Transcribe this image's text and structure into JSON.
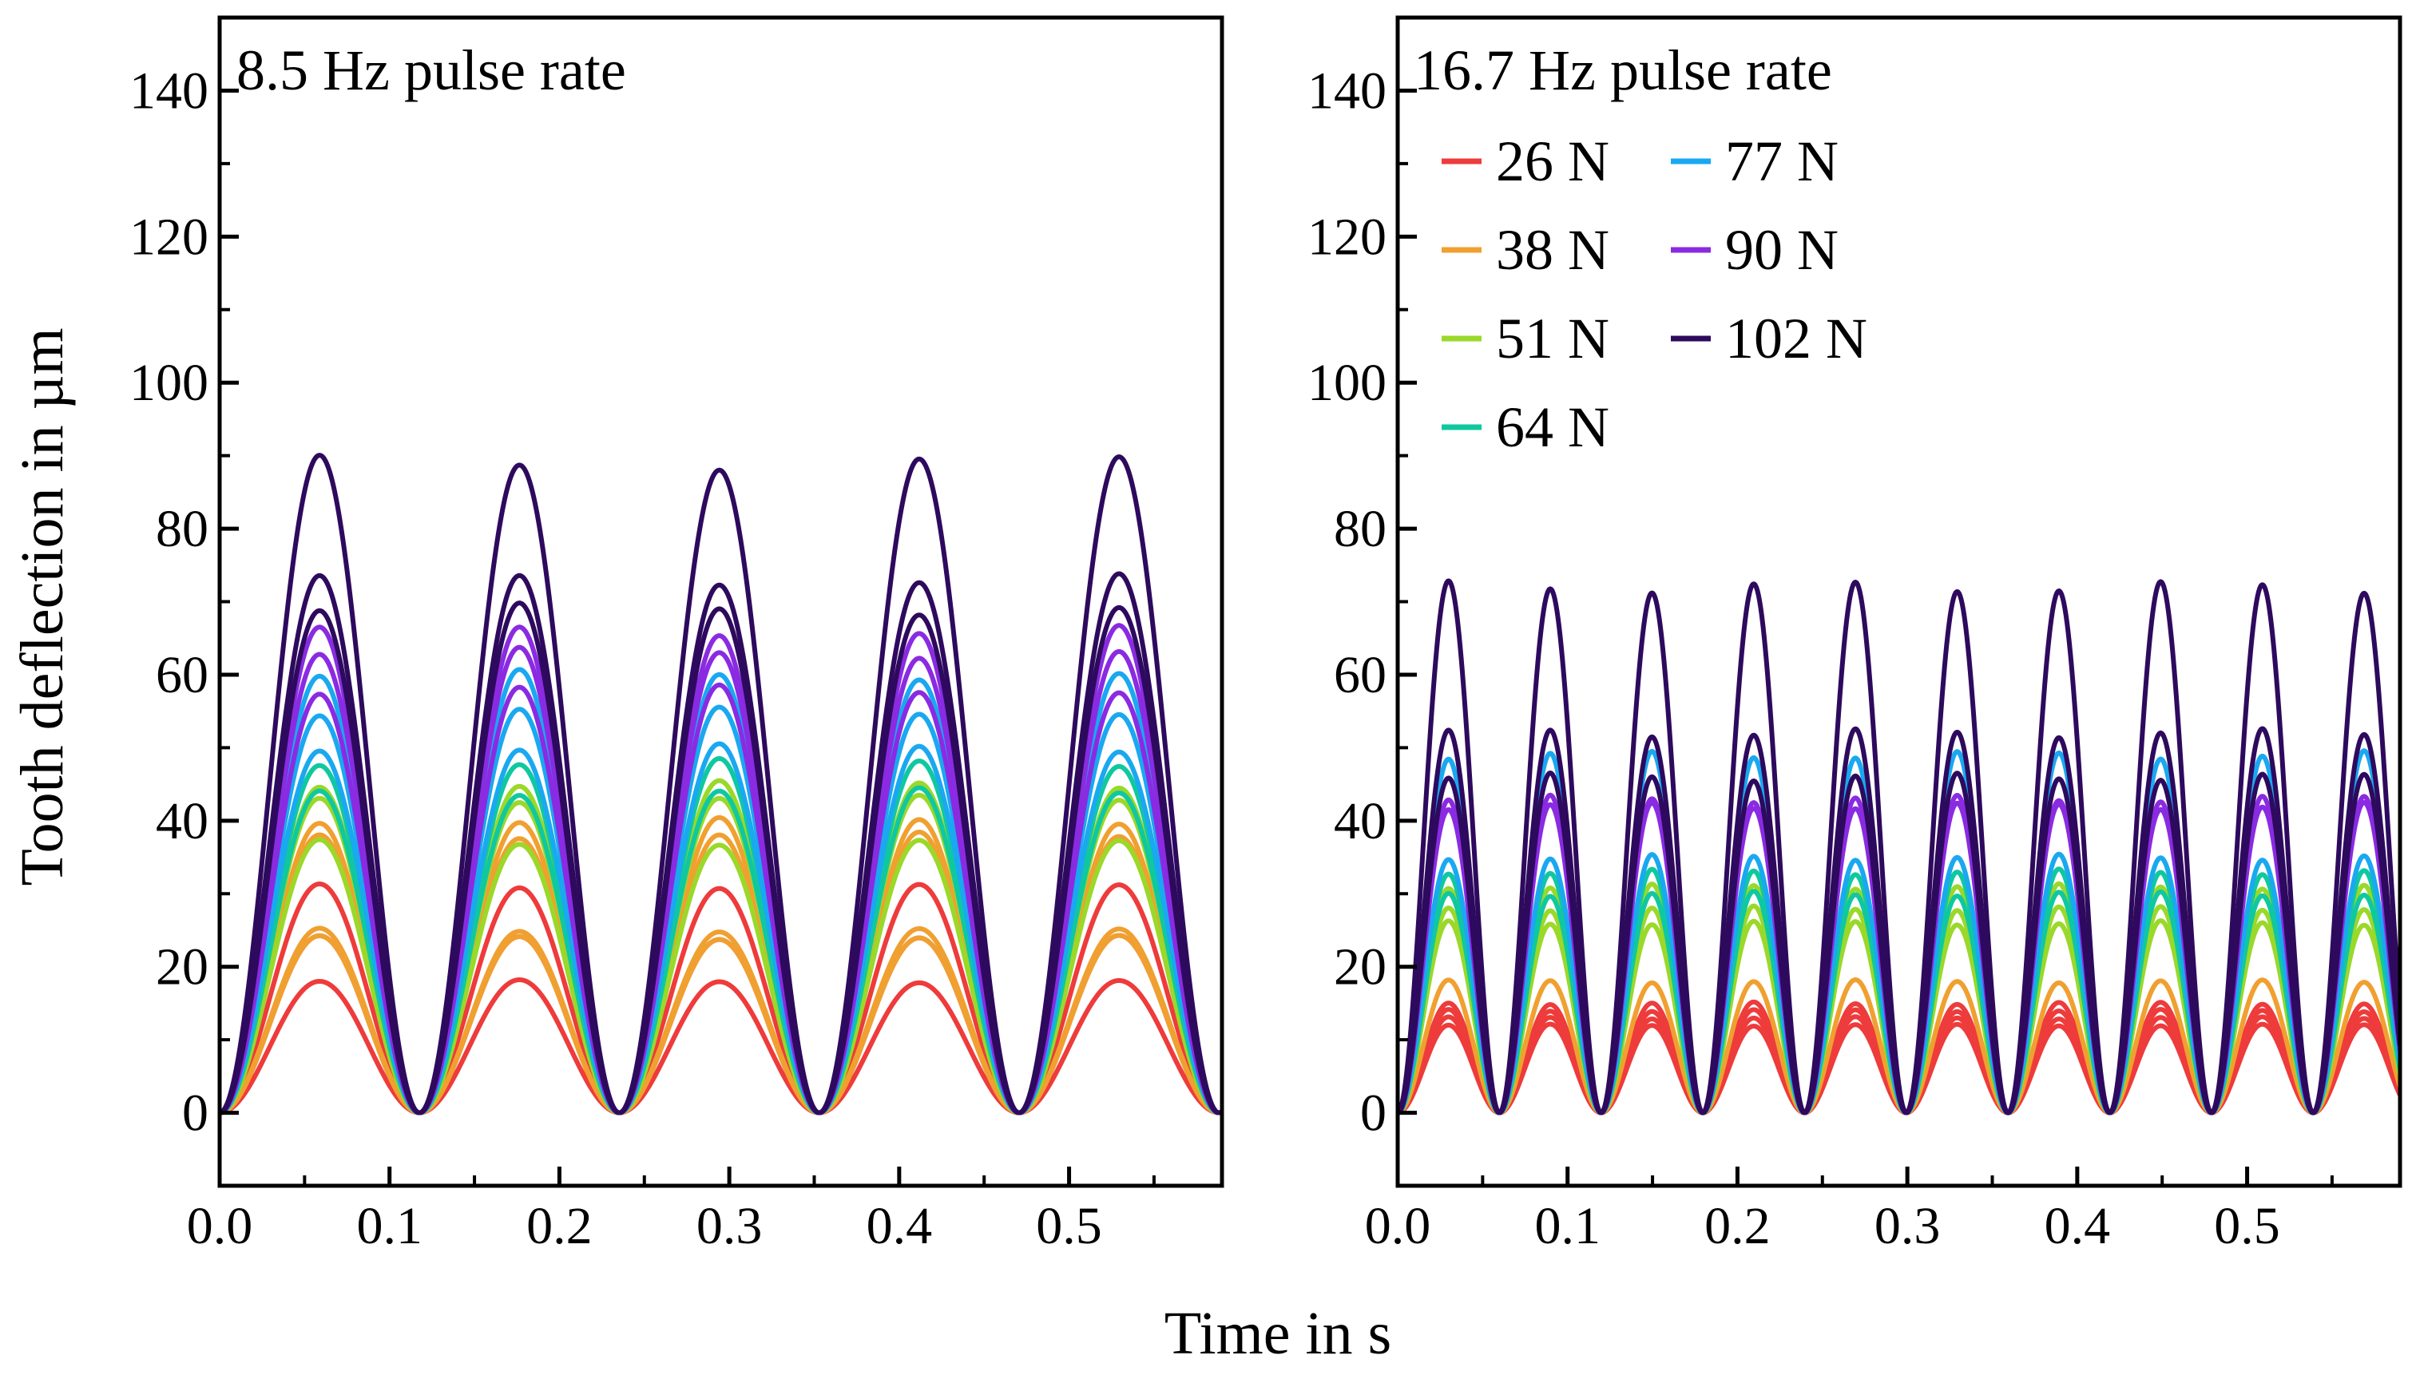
{
  "chart_data": {
    "type": "line",
    "ylabel": "Tooth deflection in µm",
    "xlabel": "Time in s",
    "xlim": [
      0,
      0.59
    ],
    "ylim": [
      -10,
      150
    ],
    "xticks": [
      0.0,
      0.1,
      0.2,
      0.3,
      0.4,
      0.5
    ],
    "xtick_labels": [
      "0.0",
      "0.1",
      "0.2",
      "0.3",
      "0.4",
      "0.5"
    ],
    "yticks": [
      0,
      20,
      40,
      60,
      80,
      100,
      120,
      140
    ],
    "ytick_labels": [
      "0",
      "20",
      "40",
      "60",
      "80",
      "100",
      "120",
      "140"
    ],
    "legend": [
      {
        "label": "26 N",
        "color": "#ee3b3b"
      },
      {
        "label": "38 N",
        "color": "#f0a030"
      },
      {
        "label": "51 N",
        "color": "#9ad82a"
      },
      {
        "label": "64 N",
        "color": "#10c8a0"
      },
      {
        "label": "77 N",
        "color": "#1aa8f0"
      },
      {
        "label": "90 N",
        "color": "#8a2be2"
      },
      {
        "label": "102 N",
        "color": "#2e0a5e"
      }
    ],
    "panels": [
      {
        "title": "8.5 Hz pulse rate",
        "frequency_hz": 8.5,
        "series": [
          {
            "name": "26 N",
            "color": "#ee3b3b",
            "peaks": [
              18,
              24,
              31
            ]
          },
          {
            "name": "38 N",
            "color": "#f0a030",
            "peaks": [
              24,
              25,
              38,
              40
            ]
          },
          {
            "name": "51 N",
            "color": "#9ad82a",
            "peaks": [
              37,
              43,
              45
            ]
          },
          {
            "name": "64 N",
            "color": "#10c8a0",
            "peaks": [
              44,
              48
            ]
          },
          {
            "name": "77 N",
            "color": "#1aa8f0",
            "peaks": [
              50,
              55,
              60
            ]
          },
          {
            "name": "90 N",
            "color": "#8a2be2",
            "peaks": [
              58,
              63,
              66
            ]
          },
          {
            "name": "102 N",
            "color": "#2e0a5e",
            "peaks": [
              69,
              73,
              89
            ]
          }
        ]
      },
      {
        "title": "16.7 Hz pulse rate",
        "frequency_hz": 16.7,
        "series": [
          {
            "name": "26 N",
            "color": "#ee3b3b",
            "peaks": [
              12,
              13,
              14,
              15
            ]
          },
          {
            "name": "38 N",
            "color": "#f0a030",
            "peaks": [
              18
            ]
          },
          {
            "name": "51 N",
            "color": "#9ad82a",
            "peaks": [
              26,
              28,
              31
            ]
          },
          {
            "name": "64 N",
            "color": "#10c8a0",
            "peaks": [
              30,
              33
            ]
          },
          {
            "name": "77 N",
            "color": "#1aa8f0",
            "peaks": [
              35,
              49
            ]
          },
          {
            "name": "90 N",
            "color": "#8a2be2",
            "peaks": [
              42,
              43
            ]
          },
          {
            "name": "102 N",
            "color": "#2e0a5e",
            "peaks": [
              46,
              52,
              72
            ]
          }
        ]
      }
    ]
  }
}
